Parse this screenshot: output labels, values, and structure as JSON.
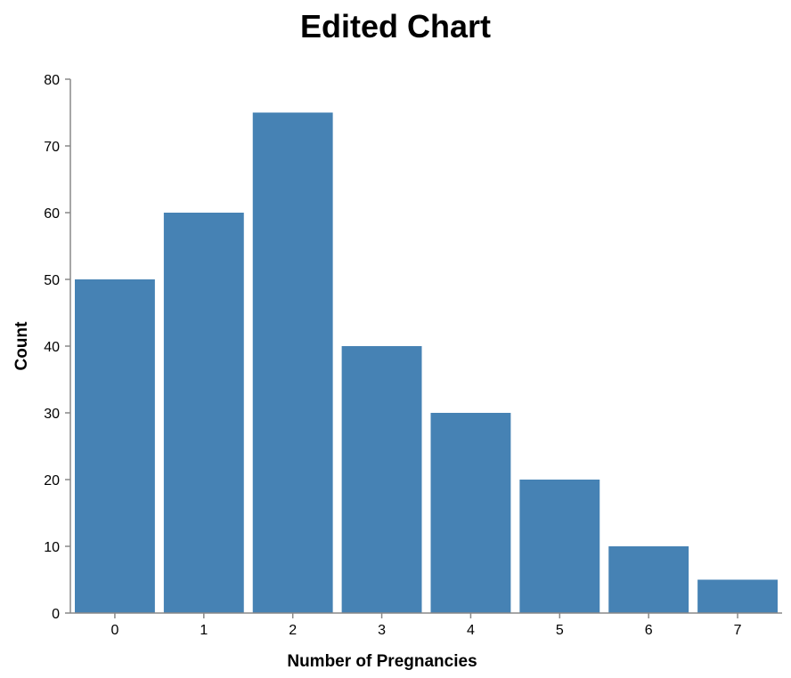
{
  "chart_data": {
    "type": "bar",
    "title": "Edited Chart",
    "xlabel": "Number of Pregnancies",
    "ylabel": "Count",
    "categories": [
      "0",
      "1",
      "2",
      "3",
      "4",
      "5",
      "6",
      "7"
    ],
    "values": [
      50,
      60,
      75,
      40,
      30,
      20,
      10,
      5
    ],
    "ylim": [
      0,
      80
    ],
    "yticks": [
      "0",
      "10",
      "20",
      "30",
      "40",
      "50",
      "60",
      "70",
      "80"
    ],
    "grid": false,
    "bar_color": "#4682b4",
    "axis_color": "#888888"
  }
}
